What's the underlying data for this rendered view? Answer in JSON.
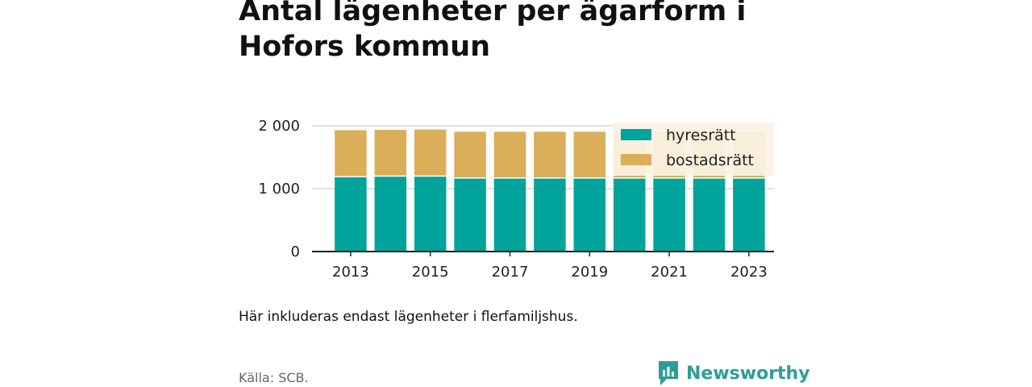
{
  "title": "Antal lägenheter per ägarform i Hofors kommun",
  "note": "Här inkluderas endast lägenheter i flerfamiljshus.",
  "source": "Källa: SCB.",
  "brand": {
    "name": "Newsworthy",
    "icon": "newsworthy-logo-icon",
    "color": "#2c9e97"
  },
  "chart_data": {
    "type": "bar",
    "stacked": true,
    "categories": [
      "2013",
      "2014",
      "2015",
      "2016",
      "2017",
      "2018",
      "2019",
      "2020",
      "2021",
      "2022",
      "2023"
    ],
    "x_tick_labels": [
      "2013",
      "2015",
      "2017",
      "2019",
      "2021",
      "2023"
    ],
    "y_tick_labels": [
      "0",
      "1 000",
      "2 000"
    ],
    "y_ticks": [
      0,
      1000,
      2000
    ],
    "ylim": [
      0,
      2000
    ],
    "grid": true,
    "legend_position": "top-right",
    "series": [
      {
        "name": "hyresrätt",
        "color": "#00a49a",
        "values": [
          1190,
          1200,
          1200,
          1170,
          1170,
          1170,
          1170,
          1170,
          1170,
          1170,
          1170
        ]
      },
      {
        "name": "bostadsrätt",
        "color": "#dbae59",
        "values": [
          740,
          735,
          740,
          735,
          735,
          735,
          735,
          740,
          740,
          740,
          740
        ]
      }
    ]
  }
}
